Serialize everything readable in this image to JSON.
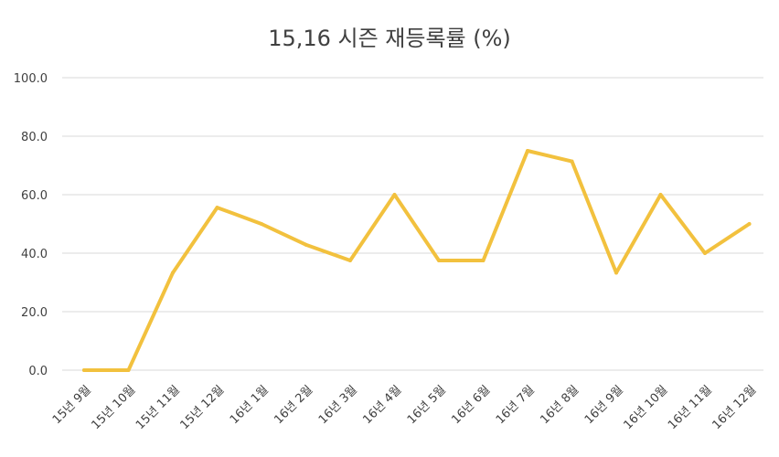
{
  "chart_data": {
    "type": "line",
    "title": "15,16 시즌 재등록률 (%)",
    "xlabel": "",
    "ylabel": "",
    "categories": [
      "15년 9월",
      "15년 10월",
      "15년 11월",
      "15년 12월",
      "16년 1월",
      "16년 2월",
      "16년 3월",
      "16년 4월",
      "16년 5월",
      "16년 6월",
      "16년 7월",
      "16년 8월",
      "16년 9월",
      "16년 10월",
      "16년 11월",
      "16년 12월"
    ],
    "series": [
      {
        "values": [
          0.0,
          0.0,
          33.3,
          55.6,
          50.0,
          42.9,
          37.5,
          60.0,
          37.5,
          37.5,
          75.0,
          71.4,
          33.3,
          60.0,
          40.0,
          50.0
        ],
        "color": "#f2c13e"
      }
    ],
    "ylim": [
      0,
      100
    ],
    "yticks": [
      "0.0",
      "20.0",
      "40.0",
      "60.0",
      "80.0",
      "100.0"
    ],
    "grid": true,
    "legend": "none"
  }
}
